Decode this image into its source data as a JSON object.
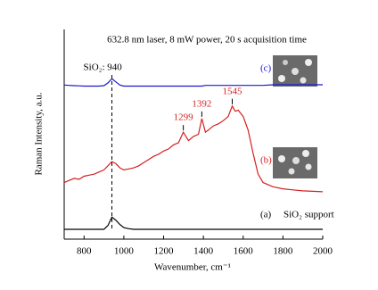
{
  "chart_data": {
    "type": "line",
    "title": "632.8 nm laser, 8 mW power, 20 s acquisition time",
    "x_label": "Wavenumber, cm⁻¹",
    "y_label": "Raman Intensity, a.u.",
    "x": [
      700,
      725,
      750,
      775,
      800,
      825,
      850,
      875,
      900,
      920,
      940,
      960,
      980,
      1000,
      1025,
      1050,
      1075,
      1100,
      1125,
      1150,
      1175,
      1200,
      1225,
      1250,
      1275,
      1299,
      1325,
      1350,
      1375,
      1392,
      1410,
      1425,
      1450,
      1475,
      1500,
      1525,
      1545,
      1560,
      1575,
      1600,
      1625,
      1650,
      1675,
      1700,
      1750,
      1800,
      1850,
      1900,
      1950,
      2000
    ],
    "series": [
      {
        "name": "(c)",
        "color": "#1a1acc",
        "values": [
          73.5,
          73.3,
          73.2,
          73.1,
          73,
          73,
          73,
          73,
          73.2,
          74.5,
          76.5,
          75,
          73.5,
          73,
          73,
          73,
          73,
          73,
          73,
          73,
          73,
          73,
          73,
          73,
          73,
          73,
          73,
          73,
          73,
          73,
          73.3,
          73.3,
          73.3,
          73.3,
          73.3,
          73.3,
          73.3,
          73.3,
          73.3,
          73.3,
          73.3,
          73.3,
          73.3,
          73.3,
          73.6,
          73.6,
          73.6,
          73.6,
          73.6,
          73.6
        ]
      },
      {
        "name": "(b)",
        "color": "#d42020",
        "values": [
          27,
          28,
          29,
          28.5,
          30,
          30.5,
          31,
          32,
          33,
          35,
          37,
          36,
          34,
          33,
          33.5,
          34,
          35,
          36.5,
          38,
          39.5,
          40.5,
          42,
          43,
          45,
          46,
          51,
          47,
          49,
          50,
          57.5,
          51,
          52,
          54,
          55,
          56.5,
          58.5,
          63.5,
          61,
          61.5,
          58.5,
          52,
          41,
          31,
          27,
          25,
          24,
          23.5,
          23,
          22.8,
          22.6
        ]
      },
      {
        "name": "(a)",
        "color": "#000000",
        "values": [
          4.7,
          4.7,
          4.7,
          4.7,
          4.7,
          4.7,
          4.7,
          4.7,
          4.7,
          6.5,
          10.5,
          9,
          7,
          5.5,
          5,
          4.7,
          4.7,
          4.7,
          4.7,
          4.7,
          4.7,
          4.7,
          4.7,
          4.7,
          4.7,
          4.7,
          4.7,
          4.7,
          4.7,
          4.7,
          4.7,
          4.7,
          4.7,
          4.7,
          4.7,
          4.7,
          4.7,
          4.7,
          4.7,
          4.7,
          4.7,
          4.7,
          4.7,
          4.7,
          4.7,
          4.7,
          4.7,
          4.7,
          4.7,
          4.7
        ]
      }
    ],
    "xlim": [
      700,
      2000
    ],
    "xticks": [
      800,
      1000,
      1200,
      1400,
      1600,
      1800,
      2000
    ],
    "ylim": [
      0,
      100
    ],
    "peaks": [
      1299,
      1392,
      1545
    ],
    "reference_line": {
      "x": 940,
      "label": "SiO₂: 940"
    },
    "support_label": "SiO₂ support"
  }
}
